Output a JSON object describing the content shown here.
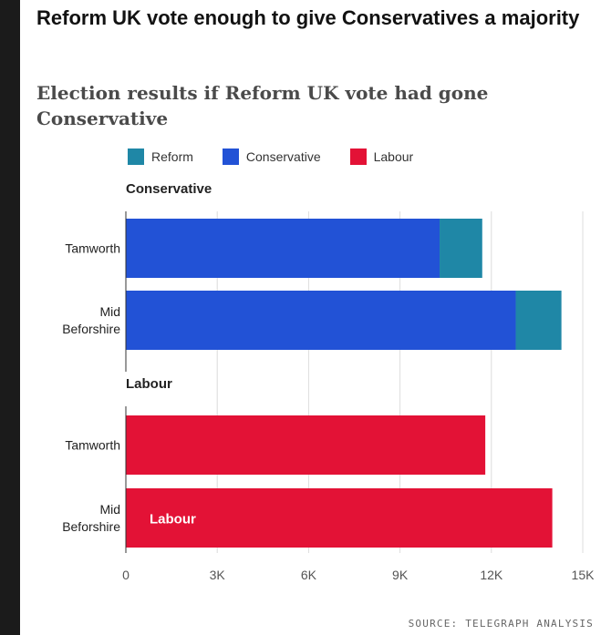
{
  "title": "Reform UK vote enough to give Conservatives a majority",
  "subtitle": "Election results if Reform UK vote had gone Conservative",
  "source": "SOURCE: TELEGRAPH ANALYSIS",
  "colors": {
    "reform": "#1f87a6",
    "conservative": "#2252d6",
    "labour": "#e31236",
    "grid": "#dcdcdc",
    "axis": "#333333",
    "text": "#222222"
  },
  "legend": [
    {
      "label": "Reform",
      "color": "#1f87a6"
    },
    {
      "label": "Conservative",
      "color": "#2252d6"
    },
    {
      "label": "Labour",
      "color": "#e31236"
    }
  ],
  "chart_data": {
    "type": "bar",
    "orientation": "horizontal",
    "stacked": true,
    "xlim": [
      0,
      15000
    ],
    "xticks": [
      0,
      3000,
      6000,
      9000,
      12000,
      15000
    ],
    "xtick_labels": [
      "0",
      "3K",
      "6K",
      "9K",
      "12K",
      "15K"
    ],
    "grid": true,
    "legend_position": "top",
    "groups": [
      {
        "label": "Conservative",
        "rows": [
          {
            "label": "Tamworth",
            "segments": [
              {
                "series": "Conservative",
                "value": 10300,
                "color": "#2252d6"
              },
              {
                "series": "Reform",
                "value": 1400,
                "color": "#1f87a6"
              }
            ]
          },
          {
            "label": "Mid Beforshire",
            "segments": [
              {
                "series": "Conservative",
                "value": 12800,
                "color": "#2252d6"
              },
              {
                "series": "Reform",
                "value": 1500,
                "color": "#1f87a6"
              }
            ]
          }
        ]
      },
      {
        "label": "Labour",
        "rows": [
          {
            "label": "Tamworth",
            "segments": [
              {
                "series": "Labour",
                "value": 11800,
                "color": "#e31236"
              }
            ]
          },
          {
            "label": "Mid Beforshire",
            "inner_label": "Labour",
            "segments": [
              {
                "series": "Labour",
                "value": 14000,
                "color": "#e31236"
              }
            ]
          }
        ]
      }
    ]
  }
}
